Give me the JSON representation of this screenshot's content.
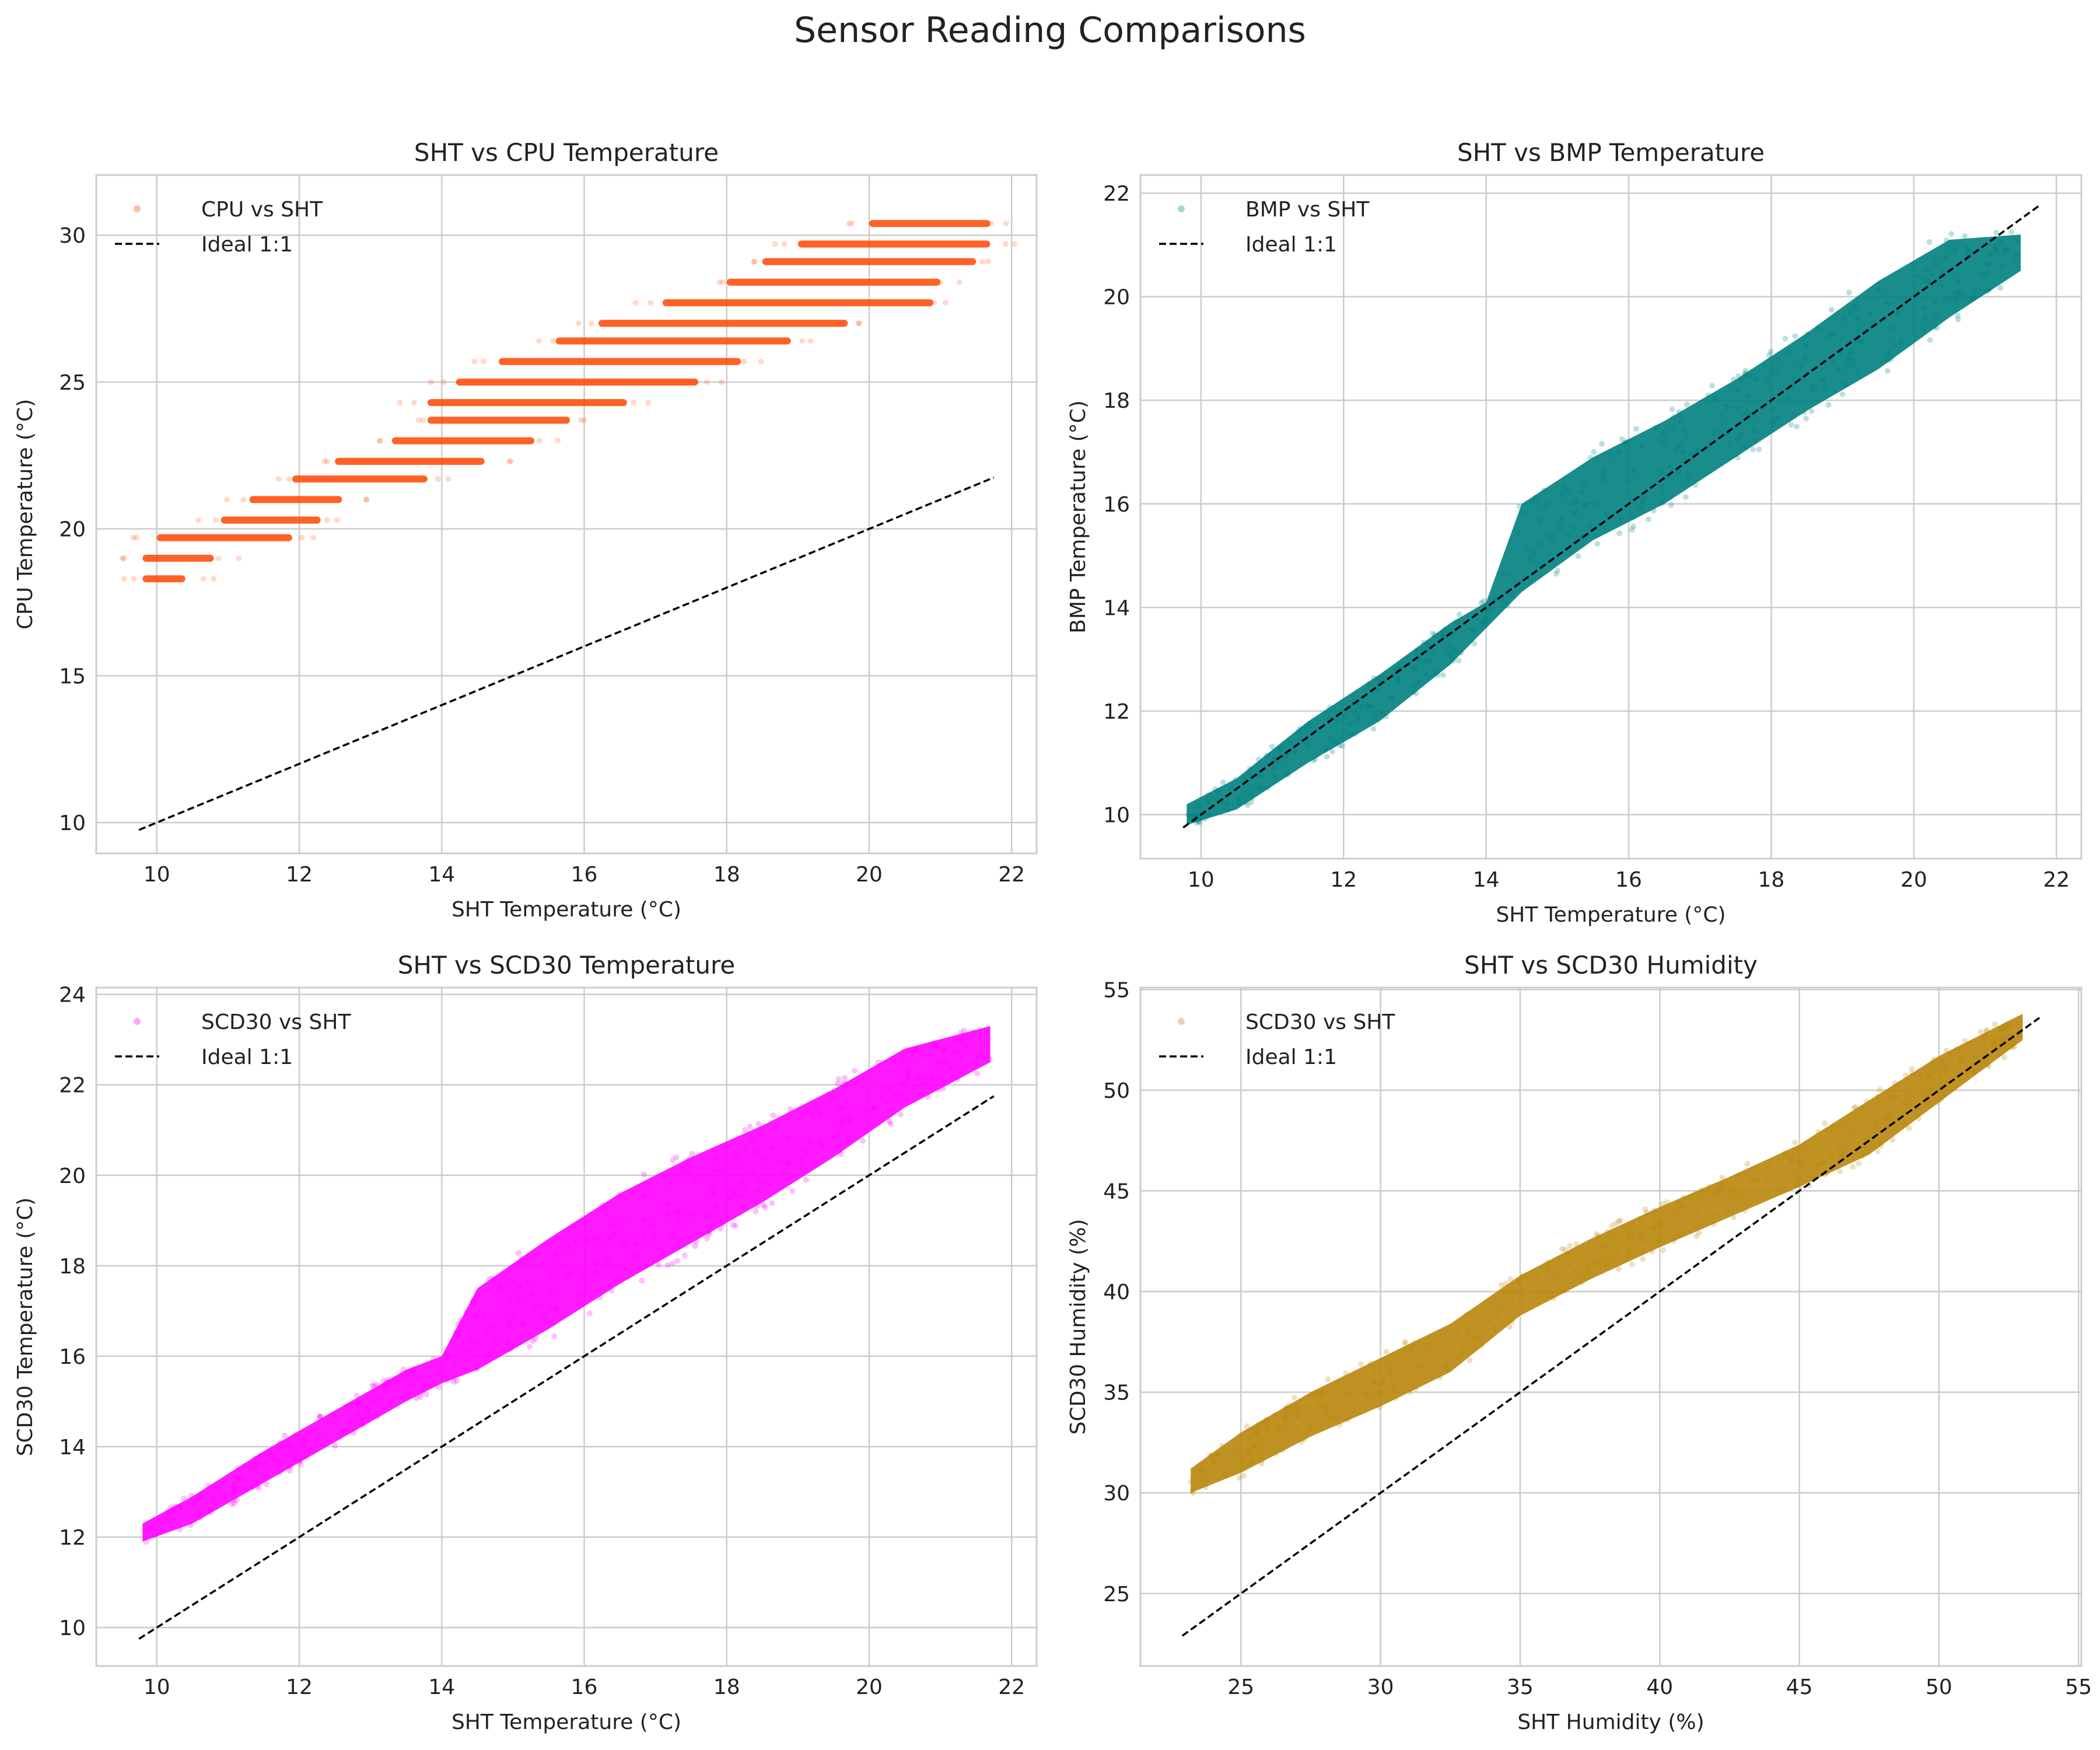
{
  "figure": {
    "suptitle": "Sensor Reading Comparisons"
  },
  "chart_data": [
    {
      "type": "scatter",
      "title": "SHT vs CPU Temperature",
      "xlabel": "SHT Temperature (°C)",
      "ylabel": "CPU Temperature (°C)",
      "xlim": [
        9.15,
        22.35
      ],
      "ylim": [
        8.95,
        32.05
      ],
      "xticks": [
        10,
        12,
        14,
        16,
        18,
        20,
        22
      ],
      "yticks": [
        10,
        15,
        20,
        25,
        30
      ],
      "grid": true,
      "legend_position": "top-left",
      "series": [
        {
          "name": "CPU vs SHT",
          "color": "#ff4500",
          "marker": "dot",
          "alpha": 0.25,
          "bands": [
            {
              "y": 18.3,
              "x0": 9.8,
              "x1": 10.4
            },
            {
              "y": 19.0,
              "x0": 9.8,
              "x1": 10.8
            },
            {
              "y": 19.7,
              "x0": 10.0,
              "x1": 11.9
            },
            {
              "y": 20.3,
              "x0": 10.9,
              "x1": 12.3
            },
            {
              "y": 21.0,
              "x0": 11.3,
              "x1": 12.6
            },
            {
              "y": 21.7,
              "x0": 11.9,
              "x1": 13.8
            },
            {
              "y": 22.3,
              "x0": 12.5,
              "x1": 14.6
            },
            {
              "y": 23.0,
              "x0": 13.3,
              "x1": 15.3
            },
            {
              "y": 23.7,
              "x0": 13.8,
              "x1": 15.8
            },
            {
              "y": 24.3,
              "x0": 13.8,
              "x1": 16.6
            },
            {
              "y": 25.0,
              "x0": 14.2,
              "x1": 17.6
            },
            {
              "y": 25.7,
              "x0": 14.8,
              "x1": 18.2
            },
            {
              "y": 26.4,
              "x0": 15.6,
              "x1": 18.9
            },
            {
              "y": 27.0,
              "x0": 16.2,
              "x1": 19.7
            },
            {
              "y": 27.7,
              "x0": 17.1,
              "x1": 20.9
            },
            {
              "y": 28.4,
              "x0": 18.0,
              "x1": 21.0
            },
            {
              "y": 29.1,
              "x0": 18.5,
              "x1": 21.5
            },
            {
              "y": 29.7,
              "x0": 19.0,
              "x1": 21.7
            },
            {
              "y": 30.4,
              "x0": 20.0,
              "x1": 21.7
            }
          ]
        },
        {
          "name": "Ideal 1:1",
          "color": "#000000",
          "line_style": "dashed",
          "x": [
            9.75,
            21.75
          ],
          "y": [
            9.75,
            21.75
          ]
        }
      ]
    },
    {
      "type": "scatter",
      "title": "SHT vs BMP Temperature",
      "xlabel": "SHT Temperature (°C)",
      "ylabel": "BMP Temperature (°C)",
      "xlim": [
        9.15,
        22.35
      ],
      "ylim": [
        9.15,
        22.35
      ],
      "xticks": [
        10,
        12,
        14,
        16,
        18,
        20,
        22
      ],
      "yticks": [
        10,
        12,
        14,
        16,
        18,
        20,
        22
      ],
      "grid": true,
      "legend_position": "top-left",
      "series": [
        {
          "name": "BMP vs SHT",
          "color": "#008080",
          "marker": "dot",
          "alpha": 0.3,
          "trend": {
            "x": [
              9.8,
              10.5,
              11.5,
              12.5,
              13.5,
              14.0,
              14.5,
              15.5,
              16.5,
              17.5,
              18.5,
              19.5,
              20.5,
              21.5
            ],
            "y0": [
              9.8,
              10.1,
              11.0,
              11.8,
              12.9,
              13.6,
              14.3,
              15.3,
              16.0,
              16.9,
              17.8,
              18.6,
              19.6,
              20.5
            ],
            "y1": [
              10.2,
              10.7,
              11.8,
              12.7,
              13.7,
              14.1,
              16.0,
              16.9,
              17.6,
              18.4,
              19.3,
              20.3,
              21.1,
              21.2
            ]
          }
        },
        {
          "name": "Ideal 1:1",
          "color": "#000000",
          "line_style": "dashed",
          "x": [
            9.75,
            21.75
          ],
          "y": [
            9.75,
            21.75
          ]
        }
      ]
    },
    {
      "type": "scatter",
      "title": "SHT vs SCD30 Temperature",
      "xlabel": "SHT Temperature (°C)",
      "ylabel": "SCD30 Temperature (°C)",
      "xlim": [
        9.15,
        22.35
      ],
      "ylim": [
        9.15,
        24.15
      ],
      "xticks": [
        10,
        12,
        14,
        16,
        18,
        20,
        22
      ],
      "yticks": [
        10,
        12,
        14,
        16,
        18,
        20,
        22,
        24
      ],
      "grid": true,
      "legend_position": "top-left",
      "series": [
        {
          "name": "SCD30 vs SHT",
          "color": "#ff00ff",
          "marker": "dot",
          "alpha": 0.3,
          "trend": {
            "x": [
              9.8,
              10.5,
              11.5,
              12.5,
              13.5,
              14.0,
              14.5,
              15.5,
              16.5,
              17.5,
              18.5,
              19.5,
              20.5,
              21.7
            ],
            "y0": [
              11.9,
              12.3,
              13.2,
              14.1,
              15.0,
              15.4,
              15.7,
              16.6,
              17.6,
              18.5,
              19.4,
              20.4,
              21.5,
              22.5
            ],
            "y1": [
              12.3,
              12.9,
              13.9,
              14.8,
              15.7,
              16.0,
              17.5,
              18.6,
              19.6,
              20.4,
              21.1,
              21.9,
              22.8,
              23.3
            ]
          }
        },
        {
          "name": "Ideal 1:1",
          "color": "#000000",
          "line_style": "dashed",
          "x": [
            9.75,
            21.75
          ],
          "y": [
            9.75,
            21.75
          ]
        }
      ]
    },
    {
      "type": "scatter",
      "title": "SHT vs SCD30 Humidity",
      "xlabel": "SHT Humidity (%)",
      "ylabel": "SCD30 Humidity (%)",
      "xlim": [
        21.4,
        55.1
      ],
      "ylim": [
        21.4,
        55.1
      ],
      "xticks": [
        25,
        30,
        35,
        40,
        45,
        50,
        55
      ],
      "yticks": [
        25,
        30,
        35,
        40,
        45,
        50,
        55
      ],
      "grid": true,
      "legend_position": "top-left",
      "series": [
        {
          "name": "SCD30 vs SHT",
          "color": "#b8860b",
          "marker": "dot",
          "alpha": 0.3,
          "trend": {
            "x": [
              23.2,
              25.0,
              27.5,
              30.0,
              32.5,
              35.0,
              37.5,
              40.0,
              42.5,
              45.0,
              47.5,
              50.0,
              53.0
            ],
            "y0": [
              30.0,
              31.0,
              32.8,
              34.3,
              36.0,
              38.8,
              40.6,
              42.2,
              43.7,
              45.2,
              46.8,
              49.4,
              52.5
            ],
            "y1": [
              31.2,
              33.0,
              35.0,
              36.7,
              38.4,
              40.8,
              42.6,
              44.2,
              45.7,
              47.3,
              49.5,
              51.7,
              53.8
            ]
          }
        },
        {
          "name": "Ideal 1:1",
          "color": "#000000",
          "line_style": "dashed",
          "x": [
            22.9,
            53.6
          ],
          "y": [
            22.9,
            53.6
          ]
        }
      ]
    }
  ]
}
